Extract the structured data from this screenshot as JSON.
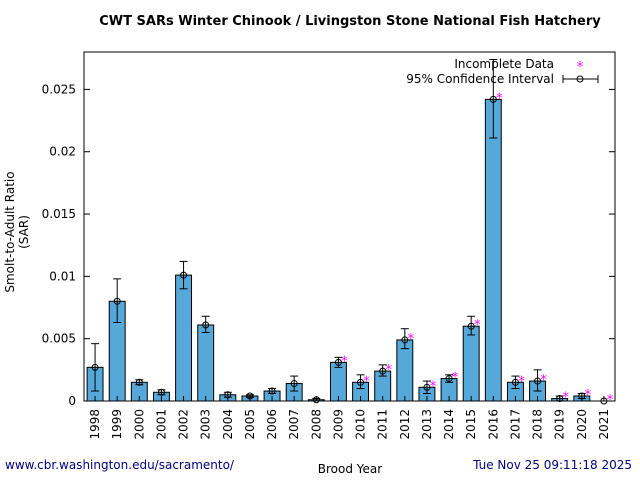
{
  "page": {
    "title": "CWT SARs Winter Chinook  / Livingston Stone National Fish Hatchery",
    "footer_left": "www.cbr.washington.edu/sacramento/",
    "footer_right": "Tue Nov 25 09:11:18 2025"
  },
  "chart_data": {
    "type": "bar",
    "title": "CWT SARs Winter Chinook  / Livingston Stone National Fish Hatchery",
    "xlabel": "Brood Year",
    "ylabel": "Smolt-to-Adult Ratio (SAR)",
    "ylim": [
      0,
      0.028
    ],
    "yticks": [
      0,
      0.005,
      0.01,
      0.015,
      0.02,
      0.025
    ],
    "ytick_labels": [
      "0",
      "0.005",
      "0.01",
      "0.015",
      "0.02",
      "0.025"
    ],
    "categories": [
      "1998",
      "1999",
      "2000",
      "2001",
      "2002",
      "2003",
      "2004",
      "2005",
      "2006",
      "2007",
      "2008",
      "2009",
      "2010",
      "2011",
      "2012",
      "2013",
      "2014",
      "2015",
      "2016",
      "2017",
      "2018",
      "2019",
      "2020",
      "2021"
    ],
    "values": [
      0.0027,
      0.008,
      0.0015,
      0.0007,
      0.0101,
      0.0061,
      0.0005,
      0.0004,
      0.0008,
      0.0014,
      0.0001,
      0.0031,
      0.0015,
      0.0024,
      0.0049,
      0.0011,
      0.0018,
      0.006,
      0.0242,
      0.0015,
      0.0016,
      0.0002,
      0.0004,
      0.0
    ],
    "ci_low": [
      0.0008,
      0.0063,
      0.0013,
      0.0005,
      0.009,
      0.0055,
      0.0003,
      0.0003,
      0.0006,
      0.0008,
      0.0,
      0.0027,
      0.001,
      0.002,
      0.0042,
      0.0006,
      0.0015,
      0.0053,
      0.0211,
      0.001,
      0.0008,
      0.0,
      0.0002,
      0.0
    ],
    "ci_high": [
      0.0046,
      0.0098,
      0.0017,
      0.0009,
      0.0112,
      0.0068,
      0.0007,
      0.0005,
      0.001,
      0.002,
      0.0002,
      0.0035,
      0.0021,
      0.0029,
      0.0058,
      0.0016,
      0.0021,
      0.0068,
      0.0274,
      0.002,
      0.0025,
      0.0004,
      0.0006,
      0.0
    ],
    "incomplete": [
      "2009",
      "2010",
      "2011",
      "2012",
      "2013",
      "2014",
      "2015",
      "2016",
      "2017",
      "2018",
      "2019",
      "2020",
      "2021"
    ],
    "bar_color": "#56a8d8",
    "marker_color": "#ff00ff",
    "legend": {
      "incomplete_label": "Incomplete Data",
      "ci_label": "95% Confidence Interval",
      "incomplete_marker": "*"
    }
  }
}
